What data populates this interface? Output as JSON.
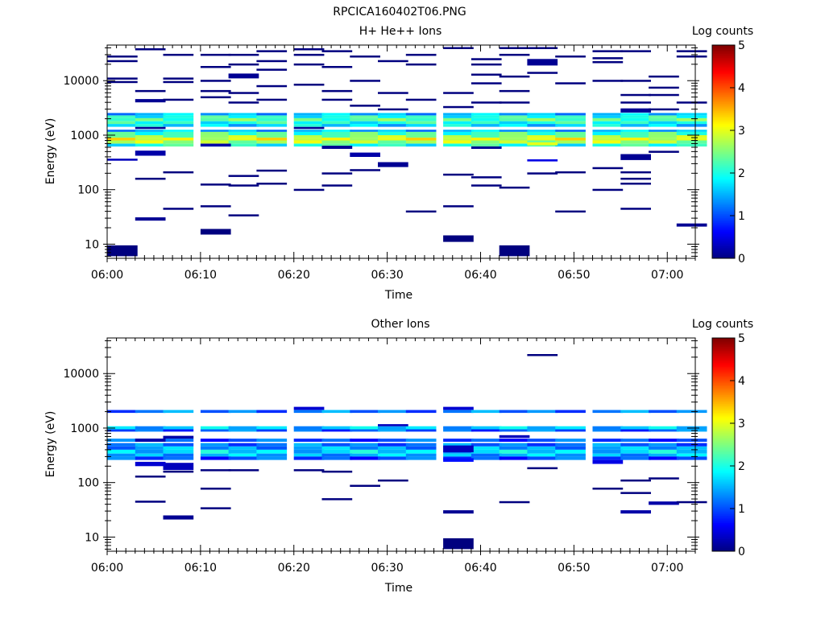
{
  "figure_title": "RPCICA160402T06.PNG",
  "colors": {
    "colormap": [
      "#00007f",
      "#0000ff",
      "#007fff",
      "#00ffff",
      "#7fff7f",
      "#ffff00",
      "#ff7f00",
      "#ff0000",
      "#7f0000"
    ],
    "frame": "#000000",
    "background": "#ffffff"
  },
  "chart_data": [
    {
      "type": "heatmap",
      "title": "H+ He++ Ions",
      "xlabel": "Time",
      "ylabel": "Energy (eV)",
      "yscale": "log",
      "xlim_minutes": [
        0,
        63
      ],
      "ylim": [
        5.5,
        45000
      ],
      "xticks": [
        "06:00",
        "06:10",
        "06:20",
        "06:30",
        "06:40",
        "06:50",
        "07:00"
      ],
      "yticks": [
        10,
        100,
        1000,
        10000
      ],
      "ytick_labels": [
        "10",
        "100",
        "1000",
        "10000"
      ],
      "time_bins": [
        "06:00",
        "06:03",
        "06:06",
        "06:10",
        "06:13",
        "06:16",
        "06:20",
        "06:23",
        "06:26",
        "06:29",
        "06:32",
        "06:36",
        "06:39",
        "06:42",
        "06:45",
        "06:48",
        "06:52",
        "06:55",
        "06:58",
        "07:01"
      ],
      "colorbar": {
        "label": "Log counts",
        "min": 0,
        "max": 5,
        "ticks": [
          "0",
          "1",
          "2",
          "3",
          "4",
          "5"
        ]
      },
      "bands": [
        {
          "e1": 2300,
          "e2": 2550,
          "v": 1.5
        },
        {
          "e1": 2050,
          "e2": 2300,
          "v": 2.0
        },
        {
          "e1": 1800,
          "e2": 2050,
          "v": 2.3
        },
        {
          "e1": 1600,
          "e2": 1800,
          "v": 2.0
        },
        {
          "e1": 1420,
          "e2": 1600,
          "v": 1.7
        },
        {
          "e1": 1150,
          "e2": 1260,
          "v": 1.5
        },
        {
          "e1": 1000,
          "e2": 1150,
          "v": 2.2
        },
        {
          "e1": 900,
          "e2": 1000,
          "v": 2.6
        },
        {
          "e1": 800,
          "e2": 900,
          "v": 3.0
        },
        {
          "e1": 700,
          "e2": 800,
          "v": 2.7
        },
        {
          "e1": 620,
          "e2": 700,
          "v": 2.0
        }
      ],
      "cells": [
        {
          "t": 0,
          "e1": 6,
          "e2": 9.5,
          "v": 0
        },
        {
          "t": 13,
          "e1": 6,
          "e2": 9.5,
          "v": 0
        },
        {
          "t": 11,
          "e1": 11,
          "e2": 14.5,
          "v": 0
        },
        {
          "t": 3,
          "e1": 15,
          "e2": 19,
          "v": 0
        },
        {
          "t": 19,
          "e1": 21,
          "e2": 24,
          "v": 0.1
        },
        {
          "t": 1,
          "e1": 27,
          "e2": 31,
          "v": 0.1
        },
        {
          "t": 14,
          "e1": 650,
          "e2": 740,
          "v": 3.0
        },
        {
          "t": 0,
          "e1": 340,
          "e2": 370,
          "v": 0.3
        },
        {
          "t": 1,
          "e1": 420,
          "e2": 520,
          "v": 0.2
        },
        {
          "t": 9,
          "e1": 260,
          "e2": 320,
          "v": 0.1
        },
        {
          "t": 7,
          "e1": 560,
          "e2": 640,
          "v": 0.1
        },
        {
          "t": 17,
          "e1": 350,
          "e2": 450,
          "v": 0.1
        },
        {
          "t": 8,
          "e1": 400,
          "e2": 480,
          "v": 0.2
        },
        {
          "t": 14,
          "e1": 330,
          "e2": 360,
          "v": 0.5
        },
        {
          "t": 17,
          "e1": 2600,
          "e2": 3100,
          "v": 0.1
        },
        {
          "t": 4,
          "e1": 11000,
          "e2": 13500,
          "v": 0.1
        },
        {
          "t": 14,
          "e1": 19000,
          "e2": 25000,
          "v": 0.1
        },
        {
          "t": 1,
          "e1": 4000,
          "e2": 4600,
          "v": 0.1
        },
        {
          "t": 6,
          "e1": 1300,
          "e2": 1420,
          "v": 0.1
        },
        {
          "t": 1,
          "e1": 1300,
          "e2": 1420,
          "v": 0.1
        },
        {
          "t": 3,
          "e1": 620,
          "e2": 700,
          "v": 0.2
        },
        {
          "t": 12,
          "e1": 560,
          "e2": 620,
          "v": 0.1
        }
      ],
      "lines": [
        {
          "t": 0,
          "e": 28000
        },
        {
          "t": 0,
          "e": 23000
        },
        {
          "t": 0,
          "e": 11000
        },
        {
          "t": 0,
          "e": 9500
        },
        {
          "t": 1,
          "e": 38000
        },
        {
          "t": 1,
          "e": 6500
        },
        {
          "t": 1,
          "e": 160
        },
        {
          "t": 2,
          "e": 30000
        },
        {
          "t": 2,
          "e": 11000
        },
        {
          "t": 2,
          "e": 9500
        },
        {
          "t": 2,
          "e": 4500
        },
        {
          "t": 2,
          "e": 210
        },
        {
          "t": 2,
          "e": 45
        },
        {
          "t": 3,
          "e": 30000
        },
        {
          "t": 3,
          "e": 18000
        },
        {
          "t": 3,
          "e": 10000
        },
        {
          "t": 3,
          "e": 6500
        },
        {
          "t": 3,
          "e": 5000
        },
        {
          "t": 3,
          "e": 125
        },
        {
          "t": 3,
          "e": 50
        },
        {
          "t": 4,
          "e": 30000
        },
        {
          "t": 4,
          "e": 20000
        },
        {
          "t": 4,
          "e": 6000
        },
        {
          "t": 4,
          "e": 4000
        },
        {
          "t": 4,
          "e": 180
        },
        {
          "t": 4,
          "e": 120
        },
        {
          "t": 4,
          "e": 34
        },
        {
          "t": 5,
          "e": 35000
        },
        {
          "t": 5,
          "e": 23000
        },
        {
          "t": 5,
          "e": 16000
        },
        {
          "t": 5,
          "e": 8000
        },
        {
          "t": 5,
          "e": 4500
        },
        {
          "t": 5,
          "e": 225
        },
        {
          "t": 5,
          "e": 130
        },
        {
          "t": 6,
          "e": 38000
        },
        {
          "t": 6,
          "e": 30000
        },
        {
          "t": 6,
          "e": 20000
        },
        {
          "t": 6,
          "e": 8500
        },
        {
          "t": 6,
          "e": 100
        },
        {
          "t": 7,
          "e": 35000
        },
        {
          "t": 7,
          "e": 18000
        },
        {
          "t": 7,
          "e": 6500
        },
        {
          "t": 7,
          "e": 4500
        },
        {
          "t": 7,
          "e": 200
        },
        {
          "t": 7,
          "e": 120
        },
        {
          "t": 8,
          "e": 28000
        },
        {
          "t": 8,
          "e": 10000
        },
        {
          "t": 8,
          "e": 3500
        },
        {
          "t": 8,
          "e": 230
        },
        {
          "t": 9,
          "e": 23000
        },
        {
          "t": 9,
          "e": 6000
        },
        {
          "t": 9,
          "e": 3000
        },
        {
          "t": 10,
          "e": 30000
        },
        {
          "t": 10,
          "e": 20000
        },
        {
          "t": 10,
          "e": 4500
        },
        {
          "t": 10,
          "e": 40
        },
        {
          "t": 11,
          "e": 40000
        },
        {
          "t": 11,
          "e": 6000
        },
        {
          "t": 11,
          "e": 3300
        },
        {
          "t": 11,
          "e": 190
        },
        {
          "t": 11,
          "e": 50
        },
        {
          "t": 12,
          "e": 25000
        },
        {
          "t": 12,
          "e": 20000
        },
        {
          "t": 12,
          "e": 13000
        },
        {
          "t": 12,
          "e": 9000
        },
        {
          "t": 12,
          "e": 4000
        },
        {
          "t": 12,
          "e": 170
        },
        {
          "t": 12,
          "e": 120
        },
        {
          "t": 13,
          "e": 40000
        },
        {
          "t": 13,
          "e": 30000
        },
        {
          "t": 13,
          "e": 12000
        },
        {
          "t": 13,
          "e": 6500
        },
        {
          "t": 13,
          "e": 4000
        },
        {
          "t": 13,
          "e": 110
        },
        {
          "t": 14,
          "e": 40000
        },
        {
          "t": 14,
          "e": 14000
        },
        {
          "t": 14,
          "e": 200
        },
        {
          "t": 15,
          "e": 28000
        },
        {
          "t": 15,
          "e": 9000
        },
        {
          "t": 15,
          "e": 210
        },
        {
          "t": 15,
          "e": 40
        },
        {
          "t": 16,
          "e": 35000
        },
        {
          "t": 16,
          "e": 26000
        },
        {
          "t": 16,
          "e": 22000
        },
        {
          "t": 16,
          "e": 10000
        },
        {
          "t": 16,
          "e": 250
        },
        {
          "t": 16,
          "e": 100
        },
        {
          "t": 17,
          "e": 35000
        },
        {
          "t": 17,
          "e": 10000
        },
        {
          "t": 17,
          "e": 5500
        },
        {
          "t": 17,
          "e": 4000
        },
        {
          "t": 17,
          "e": 210
        },
        {
          "t": 17,
          "e": 160
        },
        {
          "t": 17,
          "e": 130
        },
        {
          "t": 17,
          "e": 45
        },
        {
          "t": 18,
          "e": 12000
        },
        {
          "t": 18,
          "e": 7500
        },
        {
          "t": 18,
          "e": 5500
        },
        {
          "t": 18,
          "e": 3000
        },
        {
          "t": 18,
          "e": 500
        },
        {
          "t": 19,
          "e": 35000
        },
        {
          "t": 19,
          "e": 28000
        },
        {
          "t": 19,
          "e": 4000
        }
      ]
    },
    {
      "type": "heatmap",
      "title": "Other Ions",
      "xlabel": "Time",
      "ylabel": "Energy (eV)",
      "yscale": "log",
      "xlim_minutes": [
        0,
        63
      ],
      "ylim": [
        5.5,
        45000
      ],
      "xticks": [
        "06:00",
        "06:10",
        "06:20",
        "06:30",
        "06:40",
        "06:50",
        "07:00"
      ],
      "yticks": [
        10,
        100,
        1000,
        10000
      ],
      "ytick_labels": [
        "10",
        "100",
        "1000",
        "10000"
      ],
      "time_bins": [
        "06:00",
        "06:03",
        "06:06",
        "06:10",
        "06:13",
        "06:16",
        "06:20",
        "06:23",
        "06:26",
        "06:29",
        "06:32",
        "06:36",
        "06:39",
        "06:42",
        "06:45",
        "06:48",
        "06:52",
        "06:55",
        "06:58",
        "07:01"
      ],
      "colorbar": {
        "label": "Log counts",
        "min": 0,
        "max": 5,
        "ticks": [
          "0",
          "1",
          "2",
          "3",
          "4",
          "5"
        ]
      },
      "bands": [
        {
          "e1": 1900,
          "e2": 2150,
          "v": 1.2
        },
        {
          "e1": 950,
          "e2": 1080,
          "v": 1.6
        },
        {
          "e1": 860,
          "e2": 950,
          "v": 1.1
        },
        {
          "e1": 560,
          "e2": 640,
          "v": 1.0
        },
        {
          "e1": 460,
          "e2": 530,
          "v": 1.2
        },
        {
          "e1": 400,
          "e2": 460,
          "v": 1.4
        },
        {
          "e1": 340,
          "e2": 400,
          "v": 1.7
        },
        {
          "e1": 300,
          "e2": 340,
          "v": 1.5
        },
        {
          "e1": 260,
          "e2": 300,
          "v": 1.0
        }
      ],
      "cells": [
        {
          "t": 11,
          "e1": 6,
          "e2": 9.5,
          "v": 0
        },
        {
          "t": 11,
          "e1": 27,
          "e2": 31,
          "v": 0.1
        },
        {
          "t": 2,
          "e1": 21,
          "e2": 25,
          "v": 0.1
        },
        {
          "t": 18,
          "e1": 39,
          "e2": 45,
          "v": 0.2
        },
        {
          "t": 17,
          "e1": 27,
          "e2": 31,
          "v": 0.2
        },
        {
          "t": 2,
          "e1": 170,
          "e2": 230,
          "v": 0.3
        },
        {
          "t": 1,
          "e1": 200,
          "e2": 240,
          "v": 0.4
        },
        {
          "t": 16,
          "e1": 220,
          "e2": 260,
          "v": 0.5
        },
        {
          "t": 11,
          "e1": 240,
          "e2": 280,
          "v": 0.7
        },
        {
          "t": 9,
          "e1": 1080,
          "e2": 1180,
          "v": 0.3
        },
        {
          "t": 6,
          "e1": 2150,
          "e2": 2450,
          "v": 0.4
        },
        {
          "t": 11,
          "e1": 2150,
          "e2": 2450,
          "v": 0.4
        },
        {
          "t": 11,
          "e1": 360,
          "e2": 480,
          "v": 0.3
        },
        {
          "t": 13,
          "e1": 660,
          "e2": 740,
          "v": 0.3
        },
        {
          "t": 1,
          "e1": 560,
          "e2": 640,
          "v": 0.2
        },
        {
          "t": 2,
          "e1": 640,
          "e2": 720,
          "v": 0.2
        }
      ],
      "lines": [
        {
          "t": 1,
          "e": 130
        },
        {
          "t": 1,
          "e": 45
        },
        {
          "t": 2,
          "e": 160
        },
        {
          "t": 3,
          "e": 170
        },
        {
          "t": 3,
          "e": 78
        },
        {
          "t": 3,
          "e": 34
        },
        {
          "t": 4,
          "e": 170
        },
        {
          "t": 6,
          "e": 170
        },
        {
          "t": 7,
          "e": 160
        },
        {
          "t": 7,
          "e": 50
        },
        {
          "t": 8,
          "e": 88
        },
        {
          "t": 9,
          "e": 110
        },
        {
          "t": 13,
          "e": 44
        },
        {
          "t": 14,
          "e": 22000
        },
        {
          "t": 14,
          "e": 185
        },
        {
          "t": 16,
          "e": 78
        },
        {
          "t": 17,
          "e": 110
        },
        {
          "t": 17,
          "e": 65
        },
        {
          "t": 18,
          "e": 120
        },
        {
          "t": 19,
          "e": 44
        }
      ]
    }
  ]
}
